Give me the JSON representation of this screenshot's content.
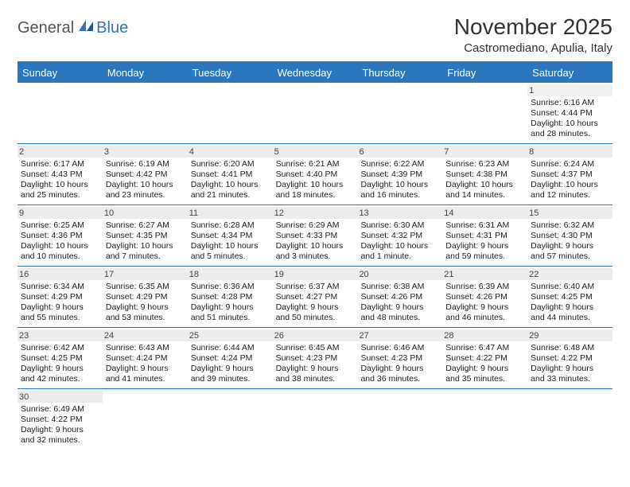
{
  "brand": {
    "part1": "General",
    "part2": "Blue"
  },
  "title": "November 2025",
  "location": "Castromediano, Apulia, Italy",
  "colors": {
    "accent": "#2b77bd",
    "header_text": "#ffffff",
    "daynum_bg": "#ececec",
    "spacer_bg": "#f0f0f0",
    "text": "#222222",
    "title_color": "#333333"
  },
  "layout": {
    "columns": 7,
    "rows": 6,
    "cell_font_size": 10.5
  },
  "day_headers": [
    "Sunday",
    "Monday",
    "Tuesday",
    "Wednesday",
    "Thursday",
    "Friday",
    "Saturday"
  ],
  "weeks": [
    [
      {
        "blank": true
      },
      {
        "blank": true
      },
      {
        "blank": true
      },
      {
        "blank": true
      },
      {
        "blank": true
      },
      {
        "blank": true
      },
      {
        "n": "1",
        "sr": "Sunrise: 6:16 AM",
        "ss": "Sunset: 4:44 PM",
        "d1": "Daylight: 10 hours",
        "d2": "and 28 minutes."
      }
    ],
    [
      {
        "n": "2",
        "sr": "Sunrise: 6:17 AM",
        "ss": "Sunset: 4:43 PM",
        "d1": "Daylight: 10 hours",
        "d2": "and 25 minutes."
      },
      {
        "n": "3",
        "sr": "Sunrise: 6:19 AM",
        "ss": "Sunset: 4:42 PM",
        "d1": "Daylight: 10 hours",
        "d2": "and 23 minutes."
      },
      {
        "n": "4",
        "sr": "Sunrise: 6:20 AM",
        "ss": "Sunset: 4:41 PM",
        "d1": "Daylight: 10 hours",
        "d2": "and 21 minutes."
      },
      {
        "n": "5",
        "sr": "Sunrise: 6:21 AM",
        "ss": "Sunset: 4:40 PM",
        "d1": "Daylight: 10 hours",
        "d2": "and 18 minutes."
      },
      {
        "n": "6",
        "sr": "Sunrise: 6:22 AM",
        "ss": "Sunset: 4:39 PM",
        "d1": "Daylight: 10 hours",
        "d2": "and 16 minutes."
      },
      {
        "n": "7",
        "sr": "Sunrise: 6:23 AM",
        "ss": "Sunset: 4:38 PM",
        "d1": "Daylight: 10 hours",
        "d2": "and 14 minutes."
      },
      {
        "n": "8",
        "sr": "Sunrise: 6:24 AM",
        "ss": "Sunset: 4:37 PM",
        "d1": "Daylight: 10 hours",
        "d2": "and 12 minutes."
      }
    ],
    [
      {
        "n": "9",
        "sr": "Sunrise: 6:25 AM",
        "ss": "Sunset: 4:36 PM",
        "d1": "Daylight: 10 hours",
        "d2": "and 10 minutes."
      },
      {
        "n": "10",
        "sr": "Sunrise: 6:27 AM",
        "ss": "Sunset: 4:35 PM",
        "d1": "Daylight: 10 hours",
        "d2": "and 7 minutes."
      },
      {
        "n": "11",
        "sr": "Sunrise: 6:28 AM",
        "ss": "Sunset: 4:34 PM",
        "d1": "Daylight: 10 hours",
        "d2": "and 5 minutes."
      },
      {
        "n": "12",
        "sr": "Sunrise: 6:29 AM",
        "ss": "Sunset: 4:33 PM",
        "d1": "Daylight: 10 hours",
        "d2": "and 3 minutes."
      },
      {
        "n": "13",
        "sr": "Sunrise: 6:30 AM",
        "ss": "Sunset: 4:32 PM",
        "d1": "Daylight: 10 hours",
        "d2": "and 1 minute."
      },
      {
        "n": "14",
        "sr": "Sunrise: 6:31 AM",
        "ss": "Sunset: 4:31 PM",
        "d1": "Daylight: 9 hours",
        "d2": "and 59 minutes."
      },
      {
        "n": "15",
        "sr": "Sunrise: 6:32 AM",
        "ss": "Sunset: 4:30 PM",
        "d1": "Daylight: 9 hours",
        "d2": "and 57 minutes."
      }
    ],
    [
      {
        "n": "16",
        "sr": "Sunrise: 6:34 AM",
        "ss": "Sunset: 4:29 PM",
        "d1": "Daylight: 9 hours",
        "d2": "and 55 minutes."
      },
      {
        "n": "17",
        "sr": "Sunrise: 6:35 AM",
        "ss": "Sunset: 4:29 PM",
        "d1": "Daylight: 9 hours",
        "d2": "and 53 minutes."
      },
      {
        "n": "18",
        "sr": "Sunrise: 6:36 AM",
        "ss": "Sunset: 4:28 PM",
        "d1": "Daylight: 9 hours",
        "d2": "and 51 minutes."
      },
      {
        "n": "19",
        "sr": "Sunrise: 6:37 AM",
        "ss": "Sunset: 4:27 PM",
        "d1": "Daylight: 9 hours",
        "d2": "and 50 minutes."
      },
      {
        "n": "20",
        "sr": "Sunrise: 6:38 AM",
        "ss": "Sunset: 4:26 PM",
        "d1": "Daylight: 9 hours",
        "d2": "and 48 minutes."
      },
      {
        "n": "21",
        "sr": "Sunrise: 6:39 AM",
        "ss": "Sunset: 4:26 PM",
        "d1": "Daylight: 9 hours",
        "d2": "and 46 minutes."
      },
      {
        "n": "22",
        "sr": "Sunrise: 6:40 AM",
        "ss": "Sunset: 4:25 PM",
        "d1": "Daylight: 9 hours",
        "d2": "and 44 minutes."
      }
    ],
    [
      {
        "n": "23",
        "sr": "Sunrise: 6:42 AM",
        "ss": "Sunset: 4:25 PM",
        "d1": "Daylight: 9 hours",
        "d2": "and 42 minutes."
      },
      {
        "n": "24",
        "sr": "Sunrise: 6:43 AM",
        "ss": "Sunset: 4:24 PM",
        "d1": "Daylight: 9 hours",
        "d2": "and 41 minutes."
      },
      {
        "n": "25",
        "sr": "Sunrise: 6:44 AM",
        "ss": "Sunset: 4:24 PM",
        "d1": "Daylight: 9 hours",
        "d2": "and 39 minutes."
      },
      {
        "n": "26",
        "sr": "Sunrise: 6:45 AM",
        "ss": "Sunset: 4:23 PM",
        "d1": "Daylight: 9 hours",
        "d2": "and 38 minutes."
      },
      {
        "n": "27",
        "sr": "Sunrise: 6:46 AM",
        "ss": "Sunset: 4:23 PM",
        "d1": "Daylight: 9 hours",
        "d2": "and 36 minutes."
      },
      {
        "n": "28",
        "sr": "Sunrise: 6:47 AM",
        "ss": "Sunset: 4:22 PM",
        "d1": "Daylight: 9 hours",
        "d2": "and 35 minutes."
      },
      {
        "n": "29",
        "sr": "Sunrise: 6:48 AM",
        "ss": "Sunset: 4:22 PM",
        "d1": "Daylight: 9 hours",
        "d2": "and 33 minutes."
      }
    ],
    [
      {
        "n": "30",
        "sr": "Sunrise: 6:49 AM",
        "ss": "Sunset: 4:22 PM",
        "d1": "Daylight: 9 hours",
        "d2": "and 32 minutes."
      },
      {
        "blank": true
      },
      {
        "blank": true
      },
      {
        "blank": true
      },
      {
        "blank": true
      },
      {
        "blank": true
      },
      {
        "blank": true
      }
    ]
  ]
}
